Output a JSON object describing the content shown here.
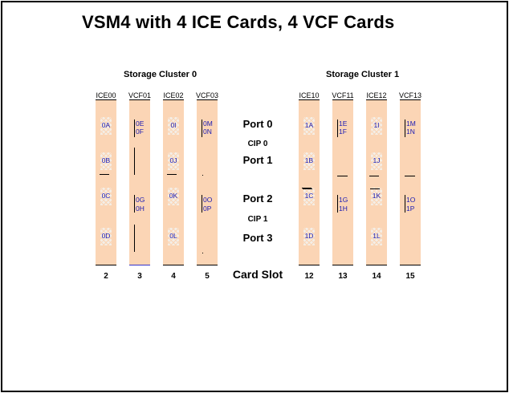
{
  "title": "VSM4 with 4 ICE Cards, 4 VCF Cards",
  "clusters": [
    {
      "label": "Storage Cluster 0"
    },
    {
      "label": "Storage Cluster 1"
    }
  ],
  "cards": [
    {
      "name": "ICE00",
      "type": "ICE",
      "slot": "2",
      "ports": [
        "0A",
        "0B",
        "0C",
        "0D"
      ]
    },
    {
      "name": "VCF01",
      "type": "VCF",
      "slot": "3",
      "ports": [
        "0E",
        "0F",
        "0G",
        "0H"
      ]
    },
    {
      "name": "ICE02",
      "type": "ICE",
      "slot": "4",
      "ports": [
        "0I",
        "0J",
        "0K",
        "0L"
      ]
    },
    {
      "name": "VCF03",
      "type": "VCF",
      "slot": "5",
      "ports": [
        "0M",
        "0N",
        "0O",
        "0P"
      ]
    },
    {
      "name": "ICE10",
      "type": "ICE",
      "slot": "12",
      "ports": [
        "1A",
        "1B",
        "1C",
        "1D"
      ]
    },
    {
      "name": "VCF11",
      "type": "VCF",
      "slot": "13",
      "ports": [
        "1E",
        "1F",
        "1G",
        "1H"
      ]
    },
    {
      "name": "ICE12",
      "type": "ICE",
      "slot": "14",
      "ports": [
        "1I",
        "1J",
        "1K",
        "1L"
      ]
    },
    {
      "name": "VCF13",
      "type": "VCF",
      "slot": "15",
      "ports": [
        "1M",
        "1N",
        "1O",
        "1P"
      ]
    }
  ],
  "center_labels": {
    "port0": "Port 0",
    "cip0": "CIP 0",
    "port1": "Port 1",
    "port2": "Port 2",
    "cip1": "CIP 1",
    "port3": "Port 3",
    "card_slot": "Card Slot"
  }
}
